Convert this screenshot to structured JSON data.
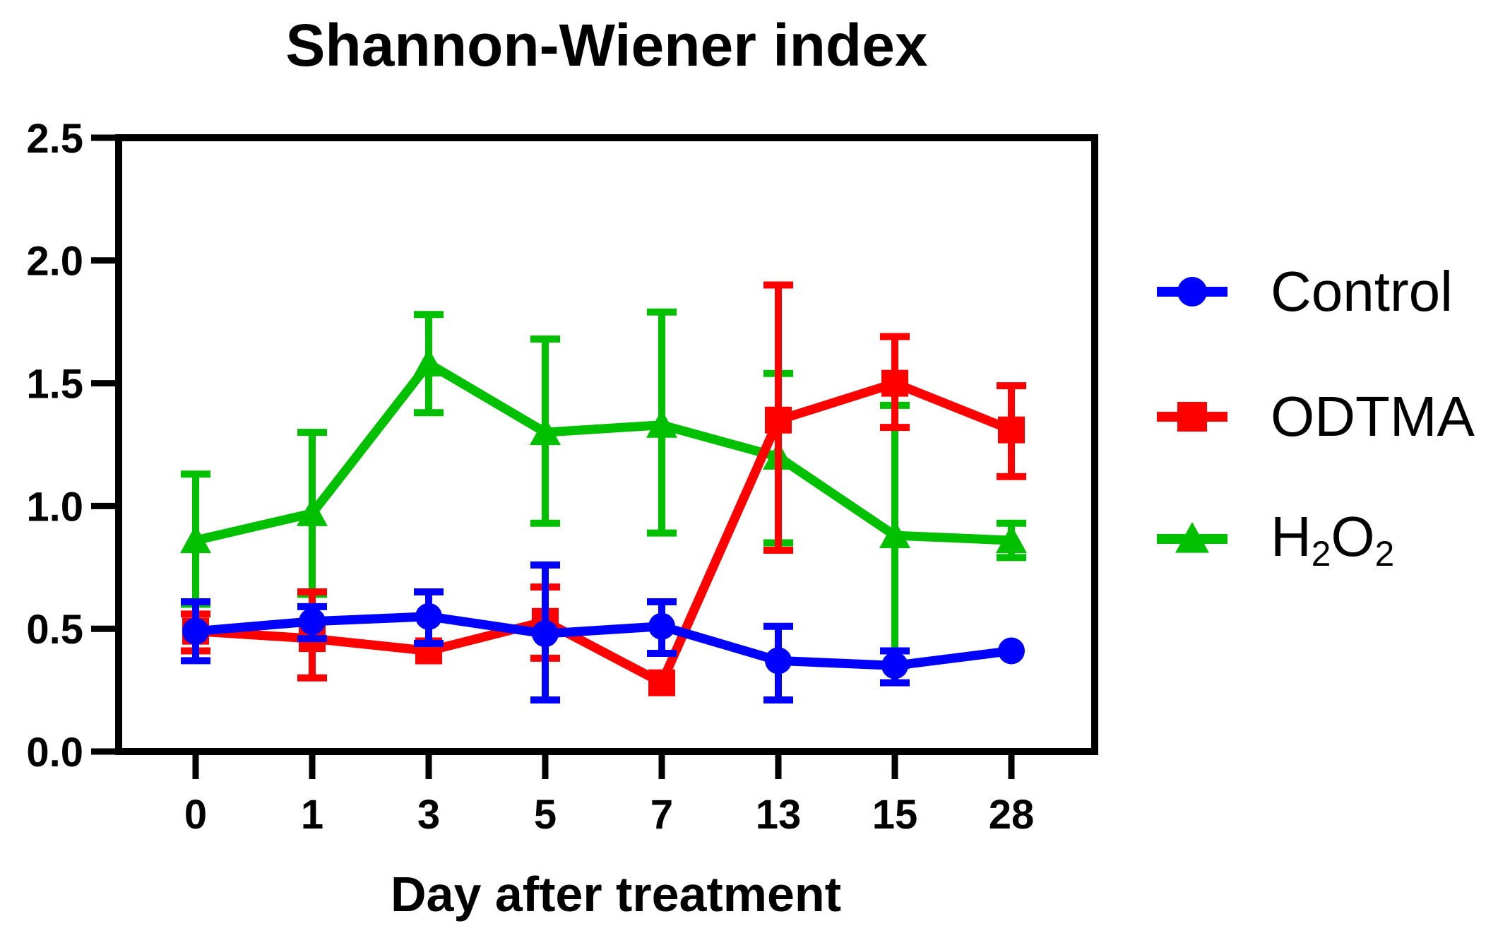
{
  "title": "Shannon-Wiener index",
  "x_axis": {
    "label": "Day after treatment",
    "categories": [
      "0",
      "1",
      "3",
      "5",
      "7",
      "13",
      "15",
      "28"
    ]
  },
  "y_axis": {
    "ticks": [
      "0.0",
      "0.5",
      "1.0",
      "1.5",
      "2.0",
      "2.5"
    ],
    "min": 0,
    "max": 2.5
  },
  "colors": {
    "control": "#0000FF",
    "odtma": "#FF0000",
    "h2o2": "#00C000",
    "axis": "#000000",
    "background": "#FFFFFF"
  },
  "legend": {
    "position": "right",
    "items": [
      {
        "name": "Control",
        "marker": "circle",
        "color": "#0000FF",
        "label": "Control",
        "label_parts": [
          {
            "t": "Control"
          }
        ]
      },
      {
        "name": "ODTMA",
        "marker": "square",
        "color": "#FF0000",
        "label": "ODTMA",
        "label_parts": [
          {
            "t": "ODTMA"
          }
        ]
      },
      {
        "name": "H2O2",
        "marker": "triangle",
        "color": "#00C000",
        "label": "H2O2",
        "label_parts": [
          {
            "t": "H"
          },
          {
            "t": "2",
            "sub": true
          },
          {
            "t": "O"
          },
          {
            "t": "2",
            "sub": true
          }
        ]
      }
    ]
  },
  "chart_data": {
    "type": "line",
    "title": "Shannon-Wiener index",
    "xlabel": "Day after treatment",
    "ylabel": "",
    "categories": [
      0,
      1,
      3,
      5,
      7,
      13,
      15,
      28
    ],
    "ylim": [
      0,
      2.5
    ],
    "grid": false,
    "legend_position": "right",
    "error_bars": "symmetric-capped",
    "series": [
      {
        "name": "Control",
        "marker": "circle",
        "color": "#0000FF",
        "values": [
          0.49,
          0.53,
          0.55,
          0.48,
          0.51,
          0.37,
          0.35,
          0.41
        ],
        "err_plus": [
          0.12,
          0.06,
          0.1,
          0.28,
          0.1,
          0.14,
          0.06,
          0
        ],
        "err_minus": [
          0.12,
          0.07,
          0.11,
          0.27,
          0.11,
          0.16,
          0.07,
          0
        ]
      },
      {
        "name": "ODTMA",
        "marker": "square",
        "color": "#FF0000",
        "values": [
          0.49,
          0.46,
          0.41,
          0.53,
          0.28,
          1.35,
          1.5,
          1.31
        ],
        "err_plus": [
          0.07,
          0.19,
          0,
          0.14,
          0,
          0.55,
          0.19,
          0.18
        ],
        "err_minus": [
          0.08,
          0.16,
          0,
          0.15,
          0,
          0.53,
          0.18,
          0.19
        ]
      },
      {
        "name": "H2O2",
        "marker": "triangle",
        "color": "#00C000",
        "values": [
          0.86,
          0.97,
          1.58,
          1.3,
          1.33,
          1.2,
          0.88,
          0.86
        ],
        "err_plus": [
          0.27,
          0.33,
          0.2,
          0.38,
          0.46,
          0.34,
          0.53,
          0.07
        ],
        "err_minus": [
          0.26,
          0.33,
          0.2,
          0.37,
          0.44,
          0.35,
          0.53,
          0.07
        ]
      }
    ]
  }
}
